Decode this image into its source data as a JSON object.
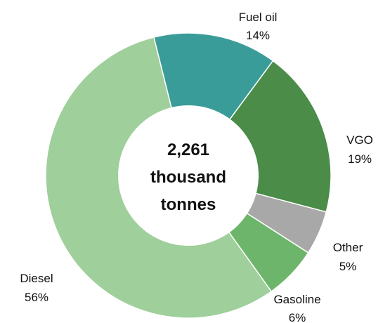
{
  "chart_data": {
    "type": "pie",
    "style": "donut",
    "center_text": [
      "2,261",
      "thousand",
      "tonnes"
    ],
    "slices": [
      {
        "name": "Fuel oil",
        "value": 14,
        "value_label": "14%",
        "color": "#3a9c98"
      },
      {
        "name": "VGO",
        "value": 19,
        "value_label": "19%",
        "color": "#4a8c48"
      },
      {
        "name": "Other",
        "value": 5,
        "value_label": "5%",
        "color": "#a8a8a8"
      },
      {
        "name": "Gasoline",
        "value": 6,
        "value_label": "6%",
        "color": "#6cb56a"
      },
      {
        "name": "Diesel",
        "value": 56,
        "value_label": "56%",
        "color": "#9fcf9a"
      }
    ]
  }
}
